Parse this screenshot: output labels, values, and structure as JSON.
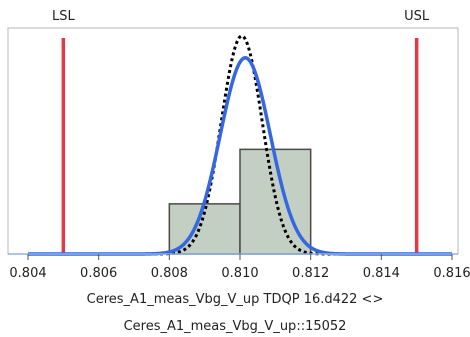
{
  "chart_data": {
    "type": "histogram",
    "title": "",
    "xlabel_line1": "Ceres_A1_meas_Vbg_V_up TDQP 16.d422 <>",
    "xlabel_line2": "Ceres_A1_meas_Vbg_V_up::15052",
    "ylabel": "",
    "xlim": [
      0.804,
      0.816
    ],
    "x_ticks": [
      0.804,
      0.806,
      0.808,
      0.81,
      0.812,
      0.814,
      0.816
    ],
    "x_tick_labels": [
      "0.804",
      "0.806",
      "0.808",
      "0.810",
      "0.812",
      "0.814",
      "0.816"
    ],
    "bins": [
      {
        "start": 0.808,
        "end": 0.81,
        "height": 0.23
      },
      {
        "start": 0.81,
        "end": 0.812,
        "height": 0.48
      }
    ],
    "spec_limits": [
      {
        "label": "LSL",
        "value": 0.805
      },
      {
        "label": "USL",
        "value": 0.815
      }
    ],
    "fit_curves": [
      {
        "name": "",
        "style": "solid",
        "mean": 0.81015,
        "sd": 0.00071,
        "peak": 0.9
      },
      {
        "name": "",
        "style": "dashed",
        "mean": 0.81005,
        "sd": 0.00058,
        "peak": 1.0
      }
    ],
    "grid": false,
    "colors": {
      "bar_fill": "#c3cfc2",
      "bar_stroke": "#4a4a4a",
      "solid_curve": "#3467e0",
      "dashed_curve": "#000000",
      "spec_line": "#e03a48",
      "frame": "#b7b7b7",
      "baseline": "#8fb4ea"
    }
  }
}
